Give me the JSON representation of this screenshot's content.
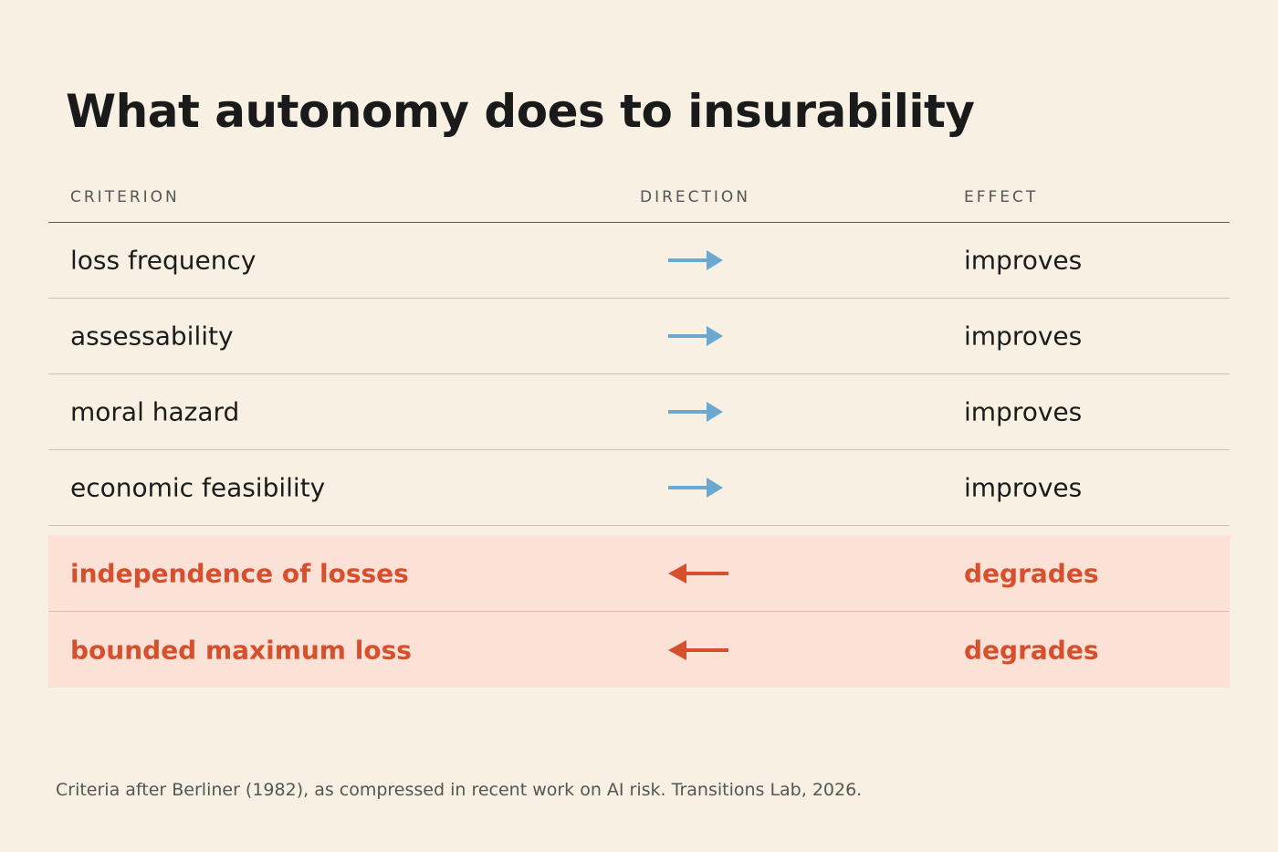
{
  "title": "What autonomy does to insurability",
  "columns": {
    "criterion": "CRITERION",
    "direction": "DIRECTION",
    "effect": "EFFECT"
  },
  "rows": [
    {
      "criterion": "loss frequency",
      "direction": "right-arrow-icon",
      "effect": "improves"
    },
    {
      "criterion": "assessability",
      "direction": "right-arrow-icon",
      "effect": "improves"
    },
    {
      "criterion": "moral hazard",
      "direction": "right-arrow-icon",
      "effect": "improves"
    },
    {
      "criterion": "economic feasibility",
      "direction": "right-arrow-icon",
      "effect": "improves"
    },
    {
      "criterion": "independence of losses",
      "direction": "left-arrow-icon",
      "effect": "degrades"
    },
    {
      "criterion": "bounded maximum loss",
      "direction": "left-arrow-icon",
      "effect": "degrades"
    }
  ],
  "caption": "Criteria after Berliner (1982), as compressed in recent work on AI risk. Transitions Lab, 2026.",
  "colors": {
    "background": "#f7f0e3",
    "improve_arrow": "#6aa9cf",
    "degrade": "#d6502e",
    "degrade_band": "#fbe1d6"
  }
}
